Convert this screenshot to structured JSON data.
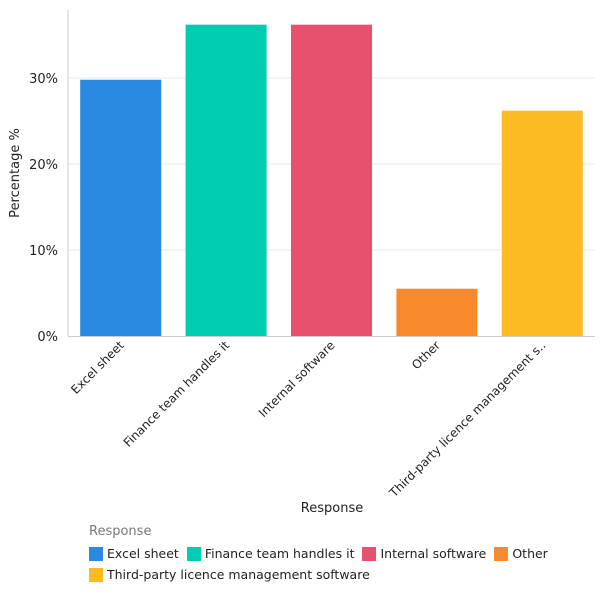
{
  "chart_data": {
    "type": "bar",
    "title": "",
    "xlabel": "Response",
    "ylabel": "Percentage %",
    "categories": [
      "Excel sheet",
      "Finance team handles it",
      "Internal software",
      "Other",
      "Third-party licence management software"
    ],
    "category_tick_labels": [
      "Excel sheet",
      "Finance team handles it",
      "Internal software",
      "Other",
      "Third-party licence management s.."
    ],
    "values": [
      29.8,
      36.2,
      36.2,
      5.5,
      26.2
    ],
    "colors": [
      "#2a8ae2",
      "#00ccb1",
      "#e8516e",
      "#f78a2d",
      "#fcbb22"
    ],
    "ylim": [
      0,
      38
    ],
    "yticks": [
      0,
      10,
      20,
      30
    ],
    "ytick_labels": [
      "0%",
      "10%",
      "20%",
      "30%"
    ],
    "grid": true,
    "legend": {
      "title": "Response",
      "position": "bottom",
      "entries": [
        "Excel sheet",
        "Finance team handles it",
        "Internal software",
        "Other",
        "Third-party licence management software"
      ]
    }
  }
}
